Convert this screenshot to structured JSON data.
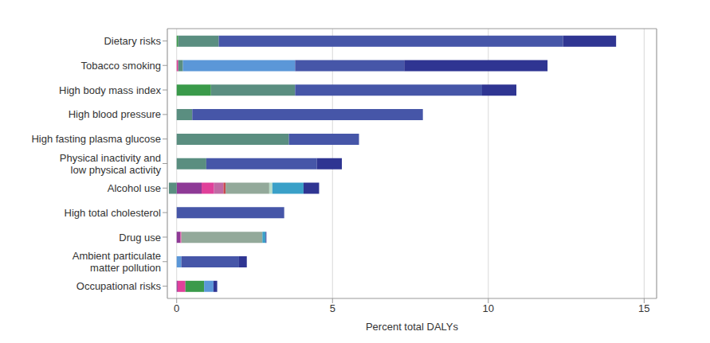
{
  "chart_data": {
    "type": "bar",
    "orientation": "horizontal",
    "stacked": true,
    "grid": true,
    "xlabel": "Percent total DALYs",
    "xlim": [
      -0.3,
      15.4
    ],
    "xticks": [
      0,
      5,
      10,
      15
    ],
    "categories": [
      "Dietary risks",
      "Tobacco smoking",
      "High body mass index",
      "High blood pressure",
      "High fasting plasma glucose",
      "Physical inactivity and\nlow physical activity",
      "Alcohol use",
      "High total cholesterol",
      "Drug use",
      "Ambient particulate\nmatter pollution",
      "Occupational risks"
    ],
    "series": [
      {
        "color": "#8e3a96",
        "values": [
          0,
          0,
          0,
          0,
          0,
          0,
          0.8,
          0,
          0.12,
          0,
          0.03
        ]
      },
      {
        "color": "#e0409a",
        "values": [
          0,
          0.05,
          0,
          0,
          0,
          0,
          0.4,
          0,
          0.03,
          0,
          0.25
        ]
      },
      {
        "color": "#c06aa5",
        "values": [
          0,
          0,
          0,
          0,
          0,
          0,
          0.3,
          0,
          0,
          0,
          0
        ]
      },
      {
        "color": "#c84a50",
        "values": [
          0,
          0,
          0,
          0,
          0,
          0,
          0.07,
          0,
          0,
          0,
          0
        ]
      },
      {
        "color": "#3a9a4a",
        "values": [
          0.05,
          0,
          1.1,
          0,
          0,
          0,
          0,
          0,
          0,
          0,
          0.6
        ]
      },
      {
        "color": "#93a99a",
        "values": [
          0,
          0,
          0,
          0,
          0,
          0,
          1.4,
          0,
          2.6,
          0,
          0
        ]
      },
      {
        "color": "#b8dcc8",
        "values": [
          0,
          0,
          0,
          0,
          0,
          0,
          0.1,
          0,
          0,
          0,
          0
        ]
      },
      {
        "color": "#5a8e80",
        "values": [
          1.3,
          0.15,
          2.7,
          0.5,
          3.6,
          0.95,
          -0.25,
          0,
          0,
          0,
          0
        ]
      },
      {
        "color": "#5b97d8",
        "values": [
          0,
          3.6,
          0,
          0,
          0,
          0,
          0,
          0,
          0,
          0.15,
          0.3
        ]
      },
      {
        "color": "#3aa0c8",
        "values": [
          0,
          0,
          0,
          0,
          0,
          0,
          1.0,
          0,
          0.1,
          0,
          0
        ]
      },
      {
        "color": "#4656a8",
        "values": [
          11.05,
          3.5,
          6.0,
          7.4,
          2.25,
          3.55,
          0,
          3.45,
          0.03,
          1.85,
          0
        ]
      },
      {
        "color": "#2f3592",
        "values": [
          1.7,
          4.6,
          1.1,
          0,
          0,
          0.8,
          0.5,
          0,
          0,
          0.25,
          0.12
        ]
      }
    ]
  }
}
